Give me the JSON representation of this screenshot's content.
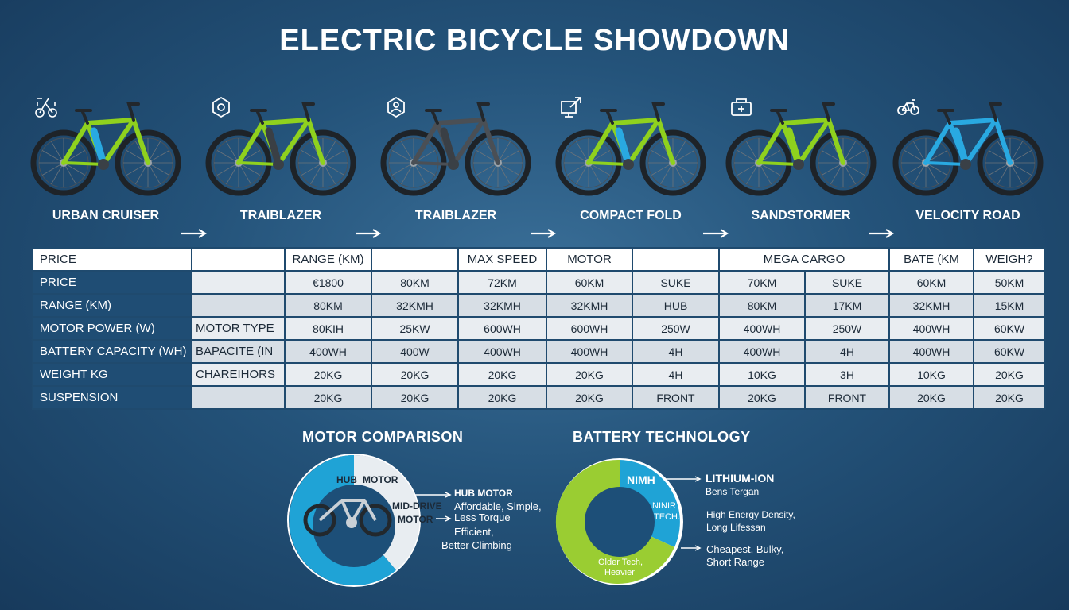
{
  "title": "ELECTRIC BICYCLE SHOWDOWN",
  "bikes": [
    {
      "name": "URBAN CRUISER",
      "icon": "folding-bike-icon",
      "frame": "#8fd11e",
      "accent": "#29a9e1"
    },
    {
      "name": "TRAIBLAZER",
      "icon": "hexagon-gear-icon",
      "frame": "#8fd11e",
      "accent": "#3a3f45"
    },
    {
      "name": "TRAIBLAZER",
      "icon": "person-badge-icon",
      "frame": "#4a4f55",
      "accent": "#3a3f45"
    },
    {
      "name": "COMPACT FOLD",
      "icon": "monitor-arrow-icon",
      "frame": "#8fd11e",
      "accent": "#29a9e1"
    },
    {
      "name": "SANDSTORMER",
      "icon": "battery-pack-icon",
      "frame": "#8fd11e",
      "accent": "#8fd11e"
    },
    {
      "name": "VELOCITY ROAD",
      "icon": "bicycle-icon",
      "frame": "#29a9e1",
      "accent": "#29a9e1"
    }
  ],
  "table": {
    "header": [
      "PRICE",
      "",
      "RANGE (KM)",
      "",
      "MAX SPEED",
      "MOTOR",
      "",
      "MEGA CARGO",
      "BATE (KM",
      "WEIGH?"
    ],
    "rows": [
      {
        "label": "PRICE",
        "sub": "",
        "cells": [
          "€1800",
          "80KM",
          "72KM",
          "60KM",
          "SUKE",
          "70KM",
          "SUKE",
          "60KM",
          "50KM"
        ]
      },
      {
        "label": "RANGE (KM)",
        "sub": "",
        "cells": [
          "80KM",
          "32KMH",
          "32KMH",
          "32KMH",
          "HUB",
          "80KM",
          "17KM",
          "32KMH",
          "15KM"
        ]
      },
      {
        "label": "MOTOR POWER (W)",
        "sub": "MOTOR TYPE",
        "cells": [
          "80KIH",
          "25KW",
          "600WH",
          "600WH",
          "250W",
          "400WH",
          "250W",
          "400WH",
          "60KW"
        ]
      },
      {
        "label": "BATTERY CAPACITY (WH)",
        "sub": "BAPACITE (IN",
        "cells": [
          "400WH",
          "400W",
          "400WH",
          "400WH",
          "4H",
          "400WH",
          "4H",
          "400WH",
          "60KW"
        ]
      },
      {
        "label": "WEIGHT KG",
        "sub": "CHAREIHORS",
        "cells": [
          "20KG",
          "20KG",
          "20KG",
          "20KG",
          "4H",
          "10KG",
          "3H",
          "10KG",
          "20KG"
        ]
      },
      {
        "label": "SUSPENSION",
        "sub": "",
        "cells": [
          "20KG",
          "20KG",
          "20KG",
          "20KG",
          "FRONT",
          "20KG",
          "FRONT",
          "20KG",
          "20KG"
        ]
      }
    ]
  },
  "motor": {
    "title": "MOTOR COMPARISON",
    "hub_label_a": "HUB",
    "hub_label_b": "MOTOR",
    "mid_label_a": "MID-DRIVE",
    "mid_label_b": "MOTOR",
    "callout1_title": "HUB MOTOR",
    "callout1_l1": "Affordable, Simple,",
    "callout1_l2": "Less Torque",
    "callout2_l1": "Efficient,",
    "callout2_l2": "Better Climbing",
    "colors": {
      "hub": "#1fa3d6",
      "mid": "#e8edf1",
      "inner": "#1d4f78"
    }
  },
  "battery": {
    "title": "BATTERY TECHNOLOGY",
    "seg_nimh": "NIMH",
    "inner_l1": "NINIR",
    "inner_l2": "TECH.",
    "lead_l1": "Older Tech,",
    "lead_l2": "Heavier",
    "callout1_title": "LITHIUM-ION",
    "callout1_sub": "Bens Tergan",
    "callout2_l1": "High Energy Density,",
    "callout2_l2": "Long Lifessan",
    "callout3_l1": "Cheapest, Bulky,",
    "callout3_l2": "Short Range",
    "colors": {
      "lithium": "#1fa3d6",
      "lead": "#9acd32",
      "inner": "#1d4f78"
    }
  }
}
